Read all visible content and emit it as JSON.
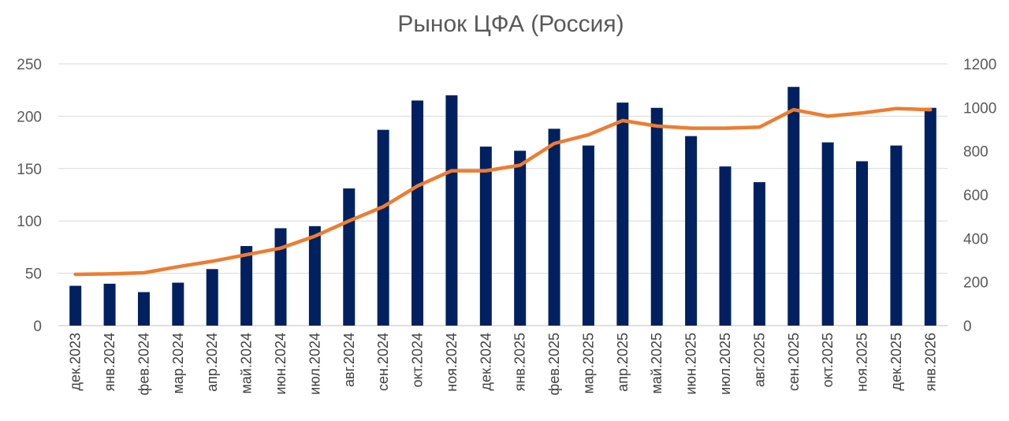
{
  "chart_data": {
    "type": "bar",
    "title": "Рынок ЦФА (Россия)",
    "categories": [
      "дек.2023",
      "янв.2024",
      "фев.2024",
      "мар.2024",
      "апр.2024",
      "май.2024",
      "июн.2024",
      "июл.2024",
      "авг.2024",
      "сен.2024",
      "окт.2024",
      "ноя.2024",
      "дек.2024",
      "янв.2025",
      "фев.2025",
      "мар.2025",
      "апр.2025",
      "май.2025",
      "июн.2025",
      "июл.2025",
      "авг.2025",
      "сен.2025",
      "окт.2025",
      "ноя.2025",
      "дек.2025",
      "янв.2026"
    ],
    "series": [
      {
        "type": "bar",
        "axis": "left",
        "color": "#002060",
        "values": [
          38,
          40,
          32,
          41,
          54,
          76,
          93,
          95,
          131,
          187,
          215,
          220,
          171,
          167,
          188,
          172,
          213,
          208,
          181,
          152,
          137,
          228,
          175,
          157,
          172,
          208
        ]
      },
      {
        "type": "line",
        "axis": "right",
        "color": "#ed7d31",
        "values": [
          235,
          237,
          242,
          270,
          295,
          325,
          355,
          410,
          480,
          545,
          640,
          710,
          710,
          735,
          835,
          875,
          940,
          915,
          905,
          905,
          910,
          990,
          960,
          975,
          995,
          990
        ]
      }
    ],
    "ylim_left": [
      0,
      250
    ],
    "yticks_left": [
      0,
      50,
      100,
      150,
      200,
      250
    ],
    "ylim_right": [
      0,
      1200
    ],
    "yticks_right": [
      0,
      200,
      400,
      600,
      800,
      1000,
      1200
    ],
    "grid": true,
    "legend": "none"
  }
}
